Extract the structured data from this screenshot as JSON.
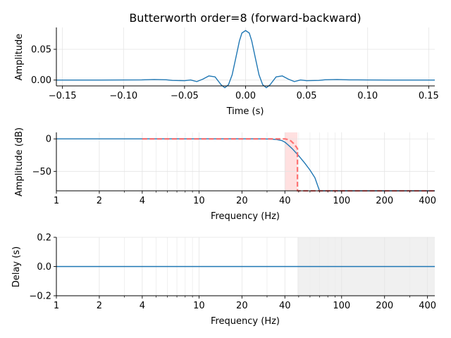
{
  "chart_data": [
    {
      "type": "line",
      "title": "Butterworth order=8 (forward-backward)",
      "xlabel": "Time (s)",
      "ylabel": "Amplitude",
      "xlim": [
        -0.155,
        0.155
      ],
      "ylim": [
        -0.0095,
        0.0855
      ],
      "grid": true,
      "xticks": [
        -0.15,
        -0.1,
        -0.05,
        0.0,
        0.05,
        0.1,
        0.15
      ],
      "xtick_labels": [
        "−0.15",
        "−0.10",
        "−0.05",
        "0.00",
        "0.05",
        "0.10",
        "0.15"
      ],
      "yticks": [
        0.0,
        0.05
      ],
      "ytick_labels": [
        "0.00",
        "0.05"
      ],
      "series": [
        {
          "color": "#1f77b4",
          "x": [
            -0.155,
            -0.12,
            -0.1,
            -0.085,
            -0.075,
            -0.065,
            -0.06,
            -0.05,
            -0.045,
            -0.04,
            -0.035,
            -0.03,
            -0.025,
            -0.02,
            -0.017,
            -0.014,
            -0.011,
            -0.008,
            -0.005,
            -0.003,
            0.0,
            0.003,
            0.005,
            0.008,
            0.011,
            0.014,
            0.017,
            0.02,
            0.025,
            0.03,
            0.035,
            0.04,
            0.045,
            0.05,
            0.06,
            0.065,
            0.075,
            0.085,
            0.1,
            0.12,
            0.155
          ],
          "y": [
            0.0,
            0.0,
            0.0002,
            0.0003,
            0.0009,
            0.0004,
            -0.0005,
            -0.001,
            0.0002,
            -0.0025,
            0.0015,
            0.0068,
            0.0052,
            -0.0078,
            -0.0125,
            -0.0075,
            0.0085,
            0.036,
            0.064,
            0.0765,
            0.0805,
            0.0765,
            0.064,
            0.036,
            0.0085,
            -0.0075,
            -0.0125,
            -0.0078,
            0.0052,
            0.0068,
            0.0015,
            -0.0025,
            0.0002,
            -0.001,
            -0.0005,
            0.0004,
            0.0009,
            0.0003,
            0.0002,
            0.0,
            0.0
          ]
        }
      ]
    },
    {
      "type": "line",
      "xlabel": "Frequency (Hz)",
      "ylabel": "Amplitude (dB)",
      "xscale": "log",
      "xlim": [
        1,
        450
      ],
      "ylim": [
        -80,
        10
      ],
      "grid": true,
      "xticks": [
        1,
        2,
        4,
        10,
        20,
        40,
        100,
        200,
        400
      ],
      "xtick_labels": [
        "1",
        "2",
        "4",
        "10",
        "20",
        "40",
        "100",
        "200",
        "400"
      ],
      "yticks": [
        0,
        -50
      ],
      "ytick_labels": [
        "0",
        "−50"
      ],
      "transition_band": {
        "from": 40,
        "to": 49,
        "color": "#ff9999"
      },
      "series": [
        {
          "color": "#1f77b4",
          "style": "solid",
          "x": [
            1,
            10,
            25,
            32,
            35,
            38,
            40,
            42,
            45,
            50,
            55,
            60,
            65,
            70,
            450
          ],
          "y": [
            0,
            0,
            0,
            -0.3,
            -1,
            -2.5,
            -5,
            -9,
            -15,
            -26,
            -37,
            -48,
            -60,
            -80,
            -80
          ]
        },
        {
          "color": "#ff6666",
          "style": "dashed",
          "x": [
            4,
            40,
            42,
            44,
            46,
            47,
            48,
            49,
            49,
            450
          ],
          "y": [
            0,
            0,
            -1,
            -3,
            -7,
            -10,
            -12,
            -15,
            -80,
            -80
          ]
        }
      ]
    },
    {
      "type": "line",
      "xlabel": "Frequency (Hz)",
      "ylabel": "Delay (s)",
      "xscale": "log",
      "xlim": [
        1,
        450
      ],
      "ylim": [
        -0.2,
        0.2
      ],
      "grid": true,
      "xticks": [
        1,
        2,
        4,
        10,
        20,
        40,
        100,
        200,
        400
      ],
      "xtick_labels": [
        "1",
        "2",
        "4",
        "10",
        "20",
        "40",
        "100",
        "200",
        "400"
      ],
      "yticks": [
        0.2,
        0.0,
        -0.2
      ],
      "ytick_labels": [
        "0.2",
        "0.0",
        "−0.2"
      ],
      "shaded_region": {
        "from": 49,
        "to": 450,
        "color": "#f0f0f0"
      },
      "series": [
        {
          "color": "#1f77b4",
          "style": "solid",
          "x": [
            1,
            450
          ],
          "y": [
            0,
            0
          ]
        }
      ]
    }
  ]
}
